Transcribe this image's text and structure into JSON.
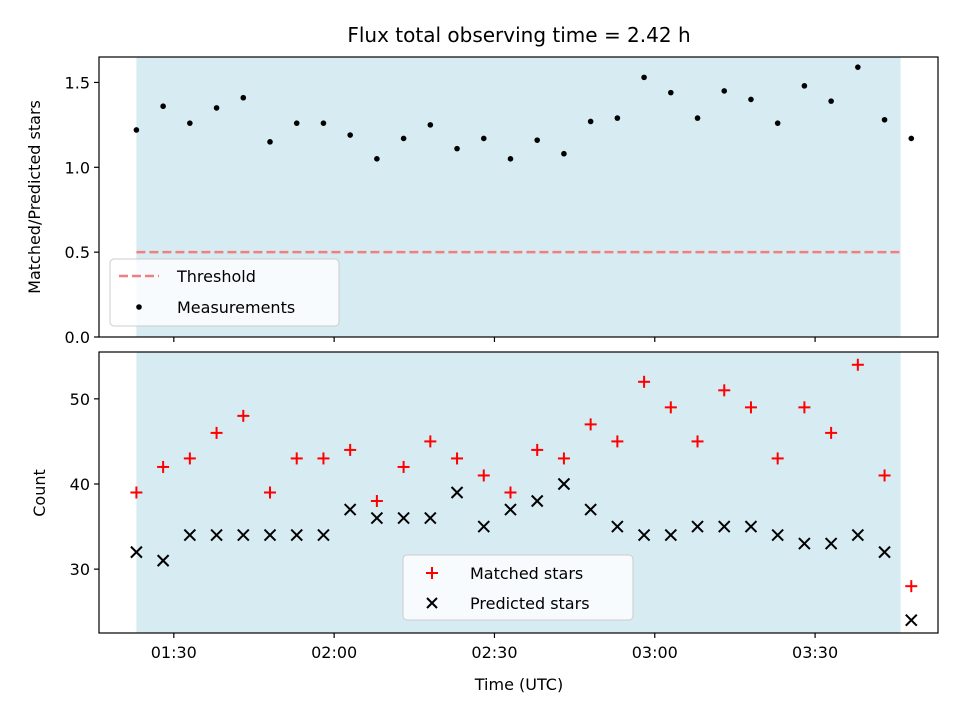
{
  "chart_data": [
    {
      "type": "scatter",
      "title": "Flux total observing time = 2.42 h",
      "xlabel": "",
      "ylabel": "Matched/Predicted stars",
      "ylim": [
        0,
        1.65
      ],
      "yticks": [
        "0.0",
        "0.5",
        "1.0",
        "1.5"
      ],
      "ytick_values": [
        0,
        0.5,
        1.0,
        1.5
      ],
      "xlim": [
        "01:16",
        "03:53"
      ],
      "shaded_range": [
        "01:23",
        "03:46"
      ],
      "shade_color": "#add8e6",
      "legend_position": "lower-left",
      "threshold": {
        "name": "Threshold",
        "value": 0.5,
        "x_range": [
          "01:23",
          "03:46"
        ],
        "color": "#f08080"
      },
      "series": [
        {
          "name": "Measurements",
          "color": "#000000",
          "x": [
            "01:23",
            "01:28",
            "01:33",
            "01:38",
            "01:43",
            "01:48",
            "01:53",
            "01:58",
            "02:03",
            "02:08",
            "02:13",
            "02:18",
            "02:23",
            "02:28",
            "02:33",
            "02:38",
            "02:43",
            "02:48",
            "02:53",
            "02:58",
            "03:03",
            "03:08",
            "03:13",
            "03:18",
            "03:23",
            "03:28",
            "03:33",
            "03:38",
            "03:43",
            "03:48"
          ],
          "values": [
            1.22,
            1.36,
            1.26,
            1.35,
            1.41,
            1.15,
            1.26,
            1.26,
            1.19,
            1.05,
            1.17,
            1.25,
            1.11,
            1.17,
            1.05,
            1.16,
            1.08,
            1.27,
            1.29,
            1.53,
            1.44,
            1.29,
            1.45,
            1.4,
            1.26,
            1.48,
            1.39,
            1.59,
            1.28,
            1.17
          ]
        }
      ]
    },
    {
      "type": "scatter",
      "xlabel": "Time (UTC)",
      "ylabel": "Count",
      "ylim": [
        22.5,
        55.5
      ],
      "yticks": [
        "30",
        "40",
        "50"
      ],
      "ytick_values": [
        30,
        40,
        50
      ],
      "xticks": [
        "01:30",
        "02:00",
        "02:30",
        "03:00",
        "03:30"
      ],
      "legend_position": "lower-center",
      "series": [
        {
          "name": "Matched stars",
          "color": "#ff0000",
          "marker": "plus",
          "values": [
            39,
            42,
            43,
            46,
            48,
            39,
            43,
            43,
            44,
            38,
            42,
            45,
            43,
            41,
            39,
            44,
            43,
            47,
            45,
            52,
            49,
            45,
            51,
            49,
            43,
            49,
            46,
            54,
            41,
            28
          ]
        },
        {
          "name": "Predicted stars",
          "color": "#000000",
          "marker": "x",
          "values": [
            32,
            31,
            34,
            34,
            34,
            34,
            34,
            34,
            37,
            36,
            36,
            36,
            39,
            35,
            37,
            38,
            40,
            37,
            35,
            34,
            34,
            35,
            35,
            35,
            34,
            33,
            33,
            34,
            32,
            24
          ]
        }
      ]
    }
  ]
}
